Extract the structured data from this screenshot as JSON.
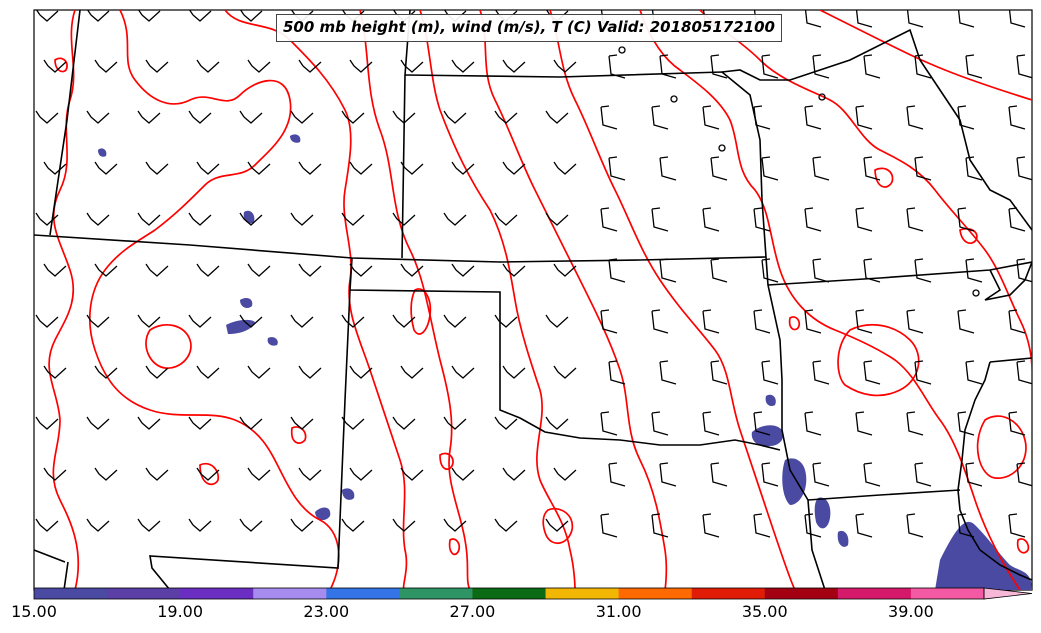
{
  "title": "500 mb height (m), wind (m/s), T (C) Valid: 201805172100",
  "colorbar": {
    "ticks": [
      "15.00",
      "19.00",
      "23.00",
      "27.00",
      "31.00",
      "35.00",
      "39.00"
    ],
    "colors": [
      "#4b4aa3",
      "#5b3ea6",
      "#6a2fc2",
      "#a78cf0",
      "#3574e6",
      "#2f9463",
      "#0b6a14",
      "#f2b705",
      "#ff6a00",
      "#e11c06",
      "#a30014",
      "#d61a6b",
      "#f45aa3"
    ]
  },
  "map": {
    "contour_color": "#ff0000",
    "shading_color": "#4b4aa3",
    "border_color": "#000000"
  }
}
